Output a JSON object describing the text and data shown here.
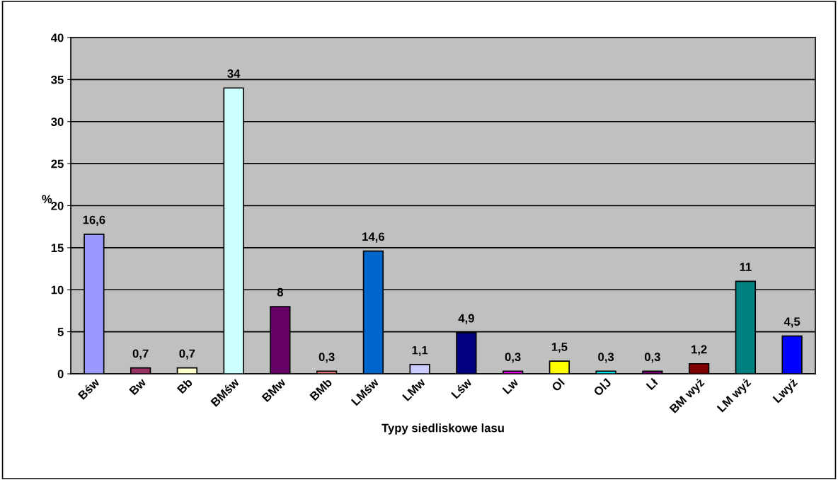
{
  "chart_data": {
    "type": "bar",
    "xlabel": "Typy siedliskowe lasu",
    "ylabel": "%",
    "categories": [
      "Bśw",
      "Bw",
      "Bb",
      "BMśw",
      "BMw",
      "BMb",
      "LMśw",
      "LMw",
      "Lśw",
      "Lw",
      "Ol",
      "OlJ",
      "Lł",
      "BM wyż",
      "LM wyż",
      "Lwyż"
    ],
    "values": [
      16.6,
      0.7,
      0.7,
      34,
      8,
      0.3,
      14.6,
      1.1,
      4.9,
      0.3,
      1.5,
      0.3,
      0.3,
      1.2,
      11,
      4.5
    ],
    "value_labels": [
      "16,6",
      "0,7",
      "0,7",
      "34",
      "8",
      "0,3",
      "14,6",
      "1,1",
      "4,9",
      "0,3",
      "1,5",
      "0,3",
      "0,3",
      "1,2",
      "11",
      "4,5"
    ],
    "colors": [
      "#9999ff",
      "#993366",
      "#ffffcc",
      "#ccffff",
      "#660066",
      "#ff8080",
      "#0066cc",
      "#ccccff",
      "#000080",
      "#ff00ff",
      "#ffff00",
      "#00ffff",
      "#800080",
      "#800000",
      "#008080",
      "#0000ff"
    ],
    "ylim": [
      0,
      40
    ],
    "yticks": [
      0,
      5,
      10,
      15,
      20,
      25,
      30,
      35,
      40
    ],
    "grid": "y"
  }
}
